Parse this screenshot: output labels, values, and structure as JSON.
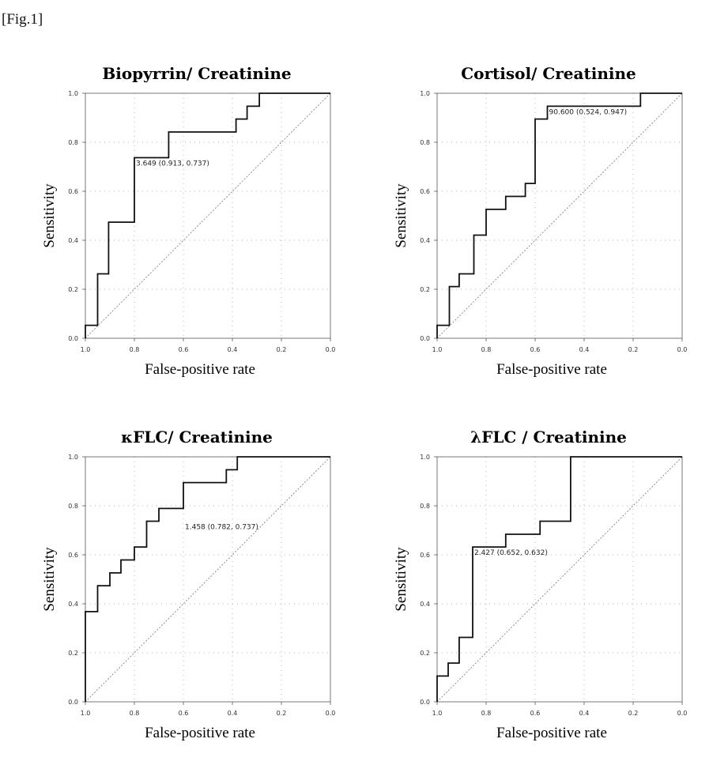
{
  "figure_label": "[Fig.1]",
  "chart_data": [
    {
      "type": "line",
      "title": "Biopyrrin/ Creatinine",
      "xlabel": "False-positive rate",
      "ylabel": "Sensitivity",
      "x_reversed": true,
      "xlim": [
        1.0,
        0.0
      ],
      "ylim": [
        0.0,
        1.0
      ],
      "x_ticks": [
        "1.0",
        "0.8",
        "0.6",
        "0.4",
        "0.2",
        "0.0"
      ],
      "y_ticks": [
        "0.0",
        "0.2",
        "0.4",
        "0.6",
        "0.8",
        "1.0"
      ],
      "grid": true,
      "annotation": {
        "text": "3.649 (0.913, 0.737)",
        "x": 0.8,
        "y": 0.737
      },
      "series": [
        {
          "x": [
            1.0,
            1.0,
            0.95,
            0.95,
            0.905,
            0.905,
            0.8,
            0.8,
            0.66,
            0.66,
            0.385,
            0.385,
            0.34,
            0.34,
            0.29,
            0.29,
            0.0
          ],
          "y": [
            0.0,
            0.053,
            0.053,
            0.263,
            0.263,
            0.474,
            0.474,
            0.737,
            0.737,
            0.842,
            0.842,
            0.895,
            0.895,
            0.947,
            0.947,
            1.0,
            1.0
          ]
        }
      ]
    },
    {
      "type": "line",
      "title": "Cortisol/ Creatinine",
      "xlabel": "False-positive rate",
      "ylabel": "Sensitivity",
      "x_reversed": true,
      "xlim": [
        1.0,
        0.0
      ],
      "ylim": [
        0.0,
        1.0
      ],
      "x_ticks": [
        "1.0",
        "0.8",
        "0.6",
        "0.4",
        "0.2",
        "0.0"
      ],
      "y_ticks": [
        "0.0",
        "0.2",
        "0.4",
        "0.6",
        "0.8",
        "1.0"
      ],
      "grid": true,
      "annotation": {
        "text": "90.600 (0.524, 0.947)",
        "x": 0.55,
        "y": 0.947
      },
      "series": [
        {
          "x": [
            1.0,
            1.0,
            0.95,
            0.95,
            0.91,
            0.91,
            0.85,
            0.85,
            0.8,
            0.8,
            0.72,
            0.72,
            0.64,
            0.64,
            0.6,
            0.6,
            0.55,
            0.55,
            0.17,
            0.17,
            0.0
          ],
          "y": [
            0.0,
            0.053,
            0.053,
            0.211,
            0.211,
            0.263,
            0.263,
            0.421,
            0.421,
            0.526,
            0.526,
            0.579,
            0.579,
            0.632,
            0.632,
            0.895,
            0.895,
            0.947,
            0.947,
            1.0,
            1.0
          ]
        }
      ]
    },
    {
      "type": "line",
      "title": "κFLC/ Creatinine",
      "xlabel": "False-positive rate",
      "ylabel": "Sensitivity",
      "x_reversed": true,
      "xlim": [
        1.0,
        0.0
      ],
      "ylim": [
        0.0,
        1.0
      ],
      "x_ticks": [
        "1.0",
        "0.8",
        "0.6",
        "0.4",
        "0.2",
        "0.0"
      ],
      "y_ticks": [
        "0.0",
        "0.2",
        "0.4",
        "0.6",
        "0.8",
        "1.0"
      ],
      "grid": true,
      "annotation": {
        "text": "1.458 (0.782, 0.737)",
        "x": 0.6,
        "y": 0.737
      },
      "series": [
        {
          "x": [
            1.0,
            1.0,
            0.95,
            0.95,
            0.9,
            0.9,
            0.855,
            0.855,
            0.8,
            0.8,
            0.75,
            0.75,
            0.7,
            0.7,
            0.6,
            0.6,
            0.425,
            0.425,
            0.38,
            0.38,
            0.32,
            0.32,
            0.0
          ],
          "y": [
            0.0,
            0.368,
            0.368,
            0.474,
            0.474,
            0.526,
            0.526,
            0.579,
            0.579,
            0.632,
            0.632,
            0.737,
            0.737,
            0.789,
            0.789,
            0.895,
            0.895,
            0.947,
            0.947,
            1.0,
            1.0,
            1.0,
            1.0
          ]
        }
      ]
    },
    {
      "type": "line",
      "title": "λFLC / Creatinine",
      "xlabel": "False-positive rate",
      "ylabel": "Sensitivity",
      "x_reversed": true,
      "xlim": [
        1.0,
        0.0
      ],
      "ylim": [
        0.0,
        1.0
      ],
      "x_ticks": [
        "1.0",
        "0.8",
        "0.6",
        "0.4",
        "0.2",
        "0.0"
      ],
      "y_ticks": [
        "0.0",
        "0.2",
        "0.4",
        "0.6",
        "0.8",
        "1.0"
      ],
      "grid": true,
      "annotation": {
        "text": "2.427 (0.652, 0.632)",
        "x": 0.855,
        "y": 0.632
      },
      "series": [
        {
          "x": [
            1.0,
            1.0,
            0.955,
            0.955,
            0.91,
            0.91,
            0.855,
            0.855,
            0.72,
            0.72,
            0.58,
            0.58,
            0.455,
            0.455,
            0.0
          ],
          "y": [
            0.0,
            0.105,
            0.105,
            0.158,
            0.158,
            0.263,
            0.263,
            0.632,
            0.632,
            0.684,
            0.684,
            0.737,
            0.737,
            1.0,
            1.0
          ]
        }
      ]
    }
  ]
}
